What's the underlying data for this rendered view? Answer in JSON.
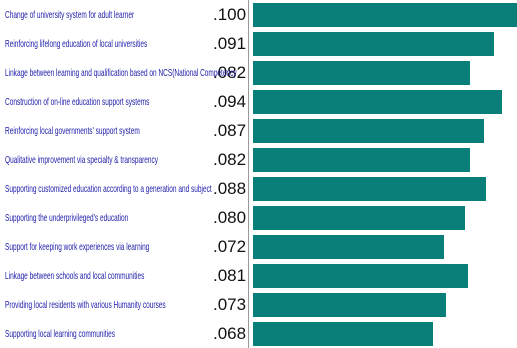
{
  "chart_data": {
    "type": "bar",
    "orientation": "horizontal",
    "bar_color": "#0a7f7a",
    "categories": [
      "Change of university system for adult learner",
      "Reinforcing lifelong education of local universities",
      "Linkage between learning and qualification based on NCS(National Competency",
      "Construction of on-line education support systems",
      "Reinforcing local governments' support system",
      "Qualitative improvement via specialty & transparency",
      "Supporting customized education according to a generation and subject",
      "Supporting the underprivileged's education",
      "Support for keeping work experiences via learning",
      "Linkage between schools and local communities",
      "Providing local residents with various Humanity courses",
      "Supporting local learning communities"
    ],
    "values": [
      0.1,
      0.091,
      0.082,
      0.094,
      0.087,
      0.082,
      0.088,
      0.08,
      0.072,
      0.081,
      0.073,
      0.068
    ],
    "value_labels": [
      ".100",
      ".091",
      ".082",
      ".094",
      ".087",
      ".082",
      ".088",
      ".080",
      ".072",
      ".081",
      ".073",
      ".068"
    ],
    "xlim": [
      0,
      0.1
    ]
  }
}
